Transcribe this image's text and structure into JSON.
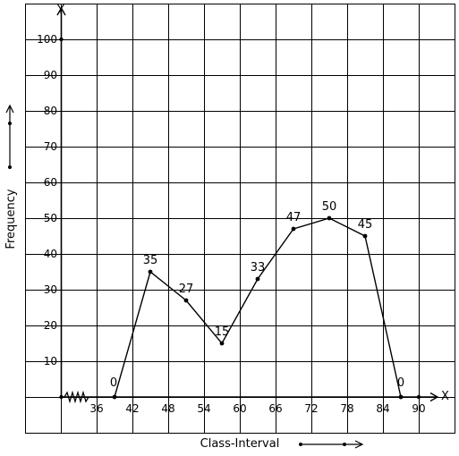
{
  "chart_data": {
    "type": "line",
    "title": "",
    "xlabel": "Class-Interval",
    "ylabel": "Frequency",
    "x_axis_letter": "X",
    "y_axis_letter": "Y",
    "xlim": [
      30,
      91
    ],
    "ylim": [
      0,
      100
    ],
    "x_ticks": [
      36,
      42,
      48,
      54,
      60,
      66,
      72,
      78,
      84,
      90
    ],
    "y_ticks": [
      10,
      20,
      30,
      40,
      50,
      60,
      70,
      80,
      90,
      100
    ],
    "grid": true,
    "series": [
      {
        "x": [
          39,
          45,
          51,
          57,
          63,
          69,
          75,
          81,
          87
        ],
        "y": [
          0,
          35,
          27,
          15,
          33,
          47,
          50,
          45,
          0
        ],
        "labels": [
          "0",
          "35",
          "27",
          "15",
          "33",
          "47",
          "50",
          "45",
          "0"
        ]
      }
    ],
    "colors": {
      "line": "#000000",
      "grid": "#000000",
      "background": "#ffffff"
    }
  }
}
